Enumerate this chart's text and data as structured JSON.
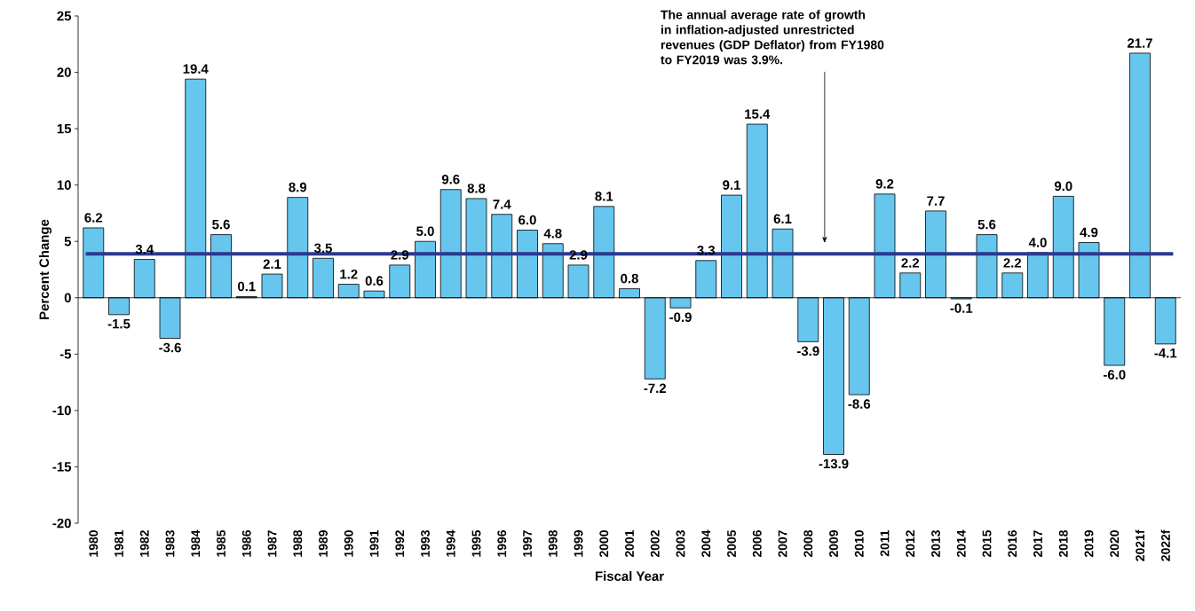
{
  "chart_data": {
    "type": "bar",
    "xlabel": "Fiscal Year",
    "ylabel": "Percent Change",
    "categories": [
      "1980",
      "1981",
      "1982",
      "1983",
      "1984",
      "1985",
      "1986",
      "1987",
      "1988",
      "1989",
      "1990",
      "1991",
      "1992",
      "1993",
      "1994",
      "1995",
      "1996",
      "1997",
      "1998",
      "1999",
      "2000",
      "2001",
      "2002",
      "2003",
      "2004",
      "2005",
      "2006",
      "2007",
      "2008",
      "2009",
      "2010",
      "2011",
      "2012",
      "2013",
      "2014",
      "2015",
      "2016",
      "2017",
      "2018",
      "2019",
      "2020",
      "2021f",
      "2022f"
    ],
    "values": [
      6.2,
      -1.5,
      3.4,
      -3.6,
      19.4,
      5.6,
      0.1,
      2.1,
      8.9,
      3.5,
      1.2,
      0.6,
      2.9,
      5.0,
      9.6,
      8.8,
      7.4,
      6.0,
      4.8,
      2.9,
      8.1,
      0.8,
      -7.2,
      -0.9,
      3.3,
      9.1,
      15.4,
      6.1,
      -3.9,
      -13.9,
      -8.6,
      9.2,
      2.2,
      7.7,
      -0.1,
      5.6,
      2.2,
      4.0,
      9.0,
      4.9,
      -6.0,
      21.7,
      -4.1
    ],
    "value_labels": [
      "6.2",
      "-1.5",
      "3.4",
      "-3.6",
      "19.4",
      "5.6",
      "0.1",
      "2.1",
      "8.9",
      "3.5",
      "1.2",
      "0.6",
      "2.9",
      "5.0",
      "9.6",
      "8.8",
      "7.4",
      "6.0",
      "4.8",
      "2.9",
      "8.1",
      "0.8",
      "-7.2",
      "-0.9",
      "3.3",
      "9.1",
      "15.4",
      "6.1",
      "-3.9",
      "-13.9",
      "-8.6",
      "9.2",
      "2.2",
      "7.7",
      "-0.1",
      "5.6",
      "2.2",
      "4.0",
      "9.0",
      "4.9",
      "-6.0",
      "21.7",
      "-4.1"
    ],
    "color": "#66c6ee",
    "ylim": [
      -20,
      25
    ],
    "yticks": [
      -20,
      -15,
      -10,
      -5,
      0,
      5,
      10,
      15,
      20,
      25
    ],
    "ref_lines": [
      {
        "axis": "y",
        "value": 3.9,
        "color": "#2b3990"
      }
    ],
    "annotations": [
      "The annual average rate of growth in inflation-adjusted unrestricted revenues (GDP Deflator) from FY1980 to FY2019 was 3.9%."
    ]
  }
}
